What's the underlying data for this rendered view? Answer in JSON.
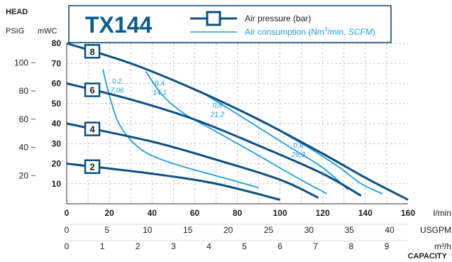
{
  "chart_data": {
    "type": "line",
    "title": "TX144",
    "colors": {
      "pressure": "#0d4f82",
      "consumption": "#1e9fd6",
      "grid": "#b9b9b9",
      "frame": "#0d4f82"
    },
    "legend": {
      "placement": "top-right",
      "pressure_label": "Air pressure (bar)",
      "consumption_label_main": "Air consumption (Nm",
      "consumption_label_sup": "3",
      "consumption_label_mid": "/min, ",
      "consumption_label_italic": "SCFM",
      "consumption_label_end": ")"
    },
    "y_header": "HEAD",
    "y_unit_left": "PSIG",
    "y_unit_right": "mWC",
    "ylim": [
      0,
      80
    ],
    "mwc_ticks": [
      10,
      20,
      30,
      40,
      50,
      60,
      70,
      80
    ],
    "psig_ticks": [
      20,
      40,
      60,
      80,
      100
    ],
    "xlim": [
      0,
      160
    ],
    "x_axes": [
      {
        "unit": "l/min",
        "ticks": [
          0,
          20,
          40,
          60,
          80,
          100,
          120,
          140,
          160
        ],
        "bold": true,
        "factor": 1
      },
      {
        "unit": "USGPM",
        "ticks": [
          0,
          5,
          10,
          15,
          20,
          25,
          30,
          35,
          40
        ],
        "bold": false,
        "factor": 3.785
      },
      {
        "unit": "m³/h",
        "ticks": [
          0,
          1,
          2,
          3,
          4,
          5,
          6,
          7,
          8,
          9
        ],
        "bold": false,
        "factor": 16.667
      }
    ],
    "capacity_label": "CAPACITY",
    "series_pressure": [
      {
        "label": "8",
        "points": [
          [
            0,
            80
          ],
          [
            30,
            70
          ],
          [
            60,
            57
          ],
          [
            90,
            42
          ],
          [
            120,
            25
          ],
          [
            140,
            13
          ],
          [
            160,
            2
          ]
        ]
      },
      {
        "label": "6",
        "points": [
          [
            0,
            60
          ],
          [
            30,
            52
          ],
          [
            60,
            42
          ],
          [
            90,
            29
          ],
          [
            120,
            15
          ],
          [
            138,
            4
          ]
        ]
      },
      {
        "label": "4",
        "points": [
          [
            0,
            40
          ],
          [
            40,
            31
          ],
          [
            70,
            22
          ],
          [
            100,
            12
          ],
          [
            118,
            3
          ]
        ]
      },
      {
        "label": "2",
        "points": [
          [
            0,
            20
          ],
          [
            40,
            15
          ],
          [
            70,
            10
          ],
          [
            100,
            2
          ]
        ]
      }
    ],
    "series_consumption": [
      {
        "label_top": "0,2",
        "label_bottom": "7,06",
        "points": [
          [
            17,
            67
          ],
          [
            20,
            54
          ],
          [
            25,
            39
          ],
          [
            35,
            27
          ],
          [
            50,
            20
          ],
          [
            70,
            14
          ],
          [
            90,
            8
          ]
        ]
      },
      {
        "label_top": "0,4",
        "label_bottom": "14,1",
        "points": [
          [
            37,
            66
          ],
          [
            45,
            54
          ],
          [
            55,
            45
          ],
          [
            70,
            36
          ],
          [
            90,
            24
          ],
          [
            108,
            13
          ],
          [
            122,
            5
          ]
        ]
      },
      {
        "label_top": "0,6",
        "label_bottom": "21,2",
        "points": [
          [
            64,
            55
          ],
          [
            75,
            48
          ],
          [
            90,
            38
          ],
          [
            105,
            28
          ],
          [
            120,
            18
          ],
          [
            132,
            7
          ]
        ]
      },
      {
        "label_top": "0,8",
        "label_bottom": "28,3",
        "points": [
          [
            102,
            35
          ],
          [
            115,
            27
          ],
          [
            128,
            18
          ],
          [
            138,
            10
          ],
          [
            148,
            5
          ]
        ]
      }
    ]
  }
}
